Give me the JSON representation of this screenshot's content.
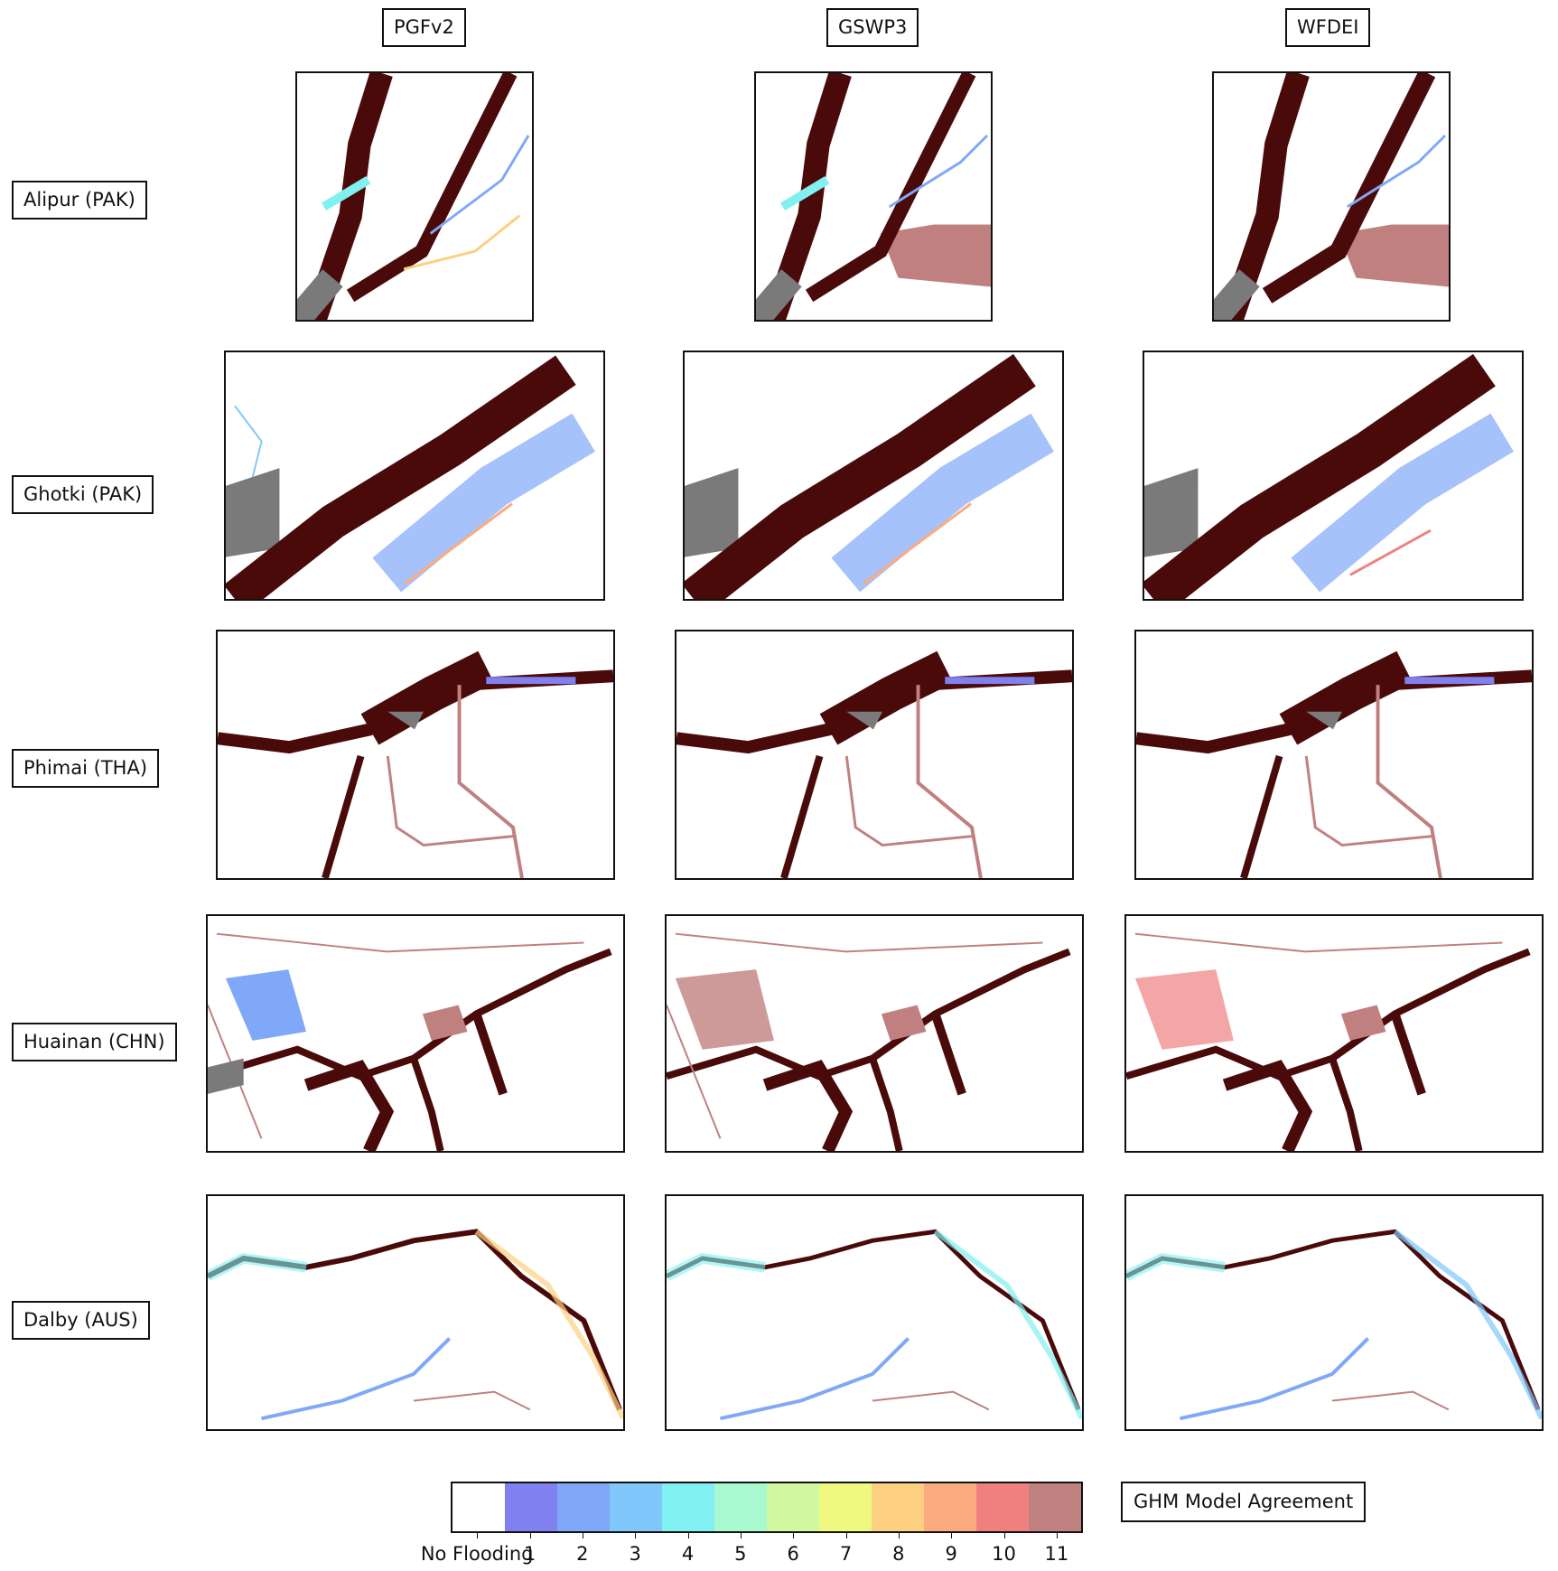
{
  "columns": [
    "PGFv2",
    "GSWP3",
    "WFDEI"
  ],
  "rows": [
    "Alipur (PAK)",
    "Ghotki (PAK)",
    "Phimai (THA)",
    "Huainan (CHN)",
    "Dalby (AUS)"
  ],
  "legend": {
    "title": "GHM Model Agreement",
    "labels": [
      "No Flooding",
      "1",
      "2",
      "3",
      "4",
      "5",
      "6",
      "7",
      "8",
      "9",
      "10",
      "11"
    ],
    "colors": [
      "#ffffff",
      "#8080f0",
      "#80a8f8",
      "#80c8fc",
      "#80f0f0",
      "#a8f8d0",
      "#d0f8a0",
      "#f0f880",
      "#fcd080",
      "#fcaa80",
      "#f08080",
      "#c08080"
    ]
  },
  "map_colors": {
    "high_agreement": "#4a0a0a",
    "agreement_11": "#c08080",
    "permanent_water": "#7a7a7a",
    "low_agreement": "#8080f0"
  }
}
